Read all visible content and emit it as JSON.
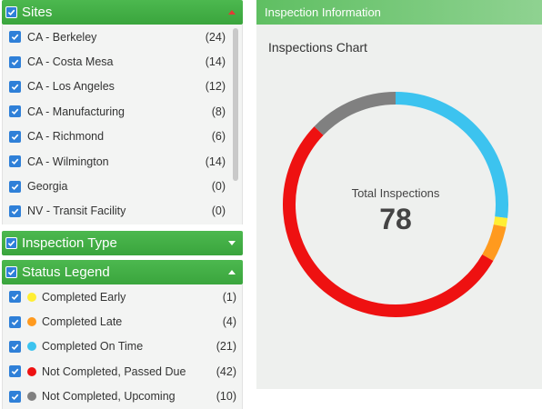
{
  "sites": {
    "title": "Sites",
    "items": [
      {
        "label": "CA - Berkeley",
        "count": "(24)"
      },
      {
        "label": "CA - Costa Mesa",
        "count": "(14)"
      },
      {
        "label": "CA - Los Angeles",
        "count": "(12)"
      },
      {
        "label": "CA - Manufacturing",
        "count": "(8)"
      },
      {
        "label": "CA - Richmond",
        "count": "(6)"
      },
      {
        "label": "CA - Wilmington",
        "count": "(14)"
      },
      {
        "label": "Georgia",
        "count": "(0)"
      },
      {
        "label": "NV - Transit Facility",
        "count": "(0)"
      }
    ]
  },
  "inspection_type": {
    "title": "Inspection Type"
  },
  "status_legend": {
    "title": "Status Legend",
    "items": [
      {
        "label": "Completed Early",
        "count": "(1)",
        "color": "#ffee33"
      },
      {
        "label": "Completed Late",
        "count": "(4)",
        "color": "#ff9a1e"
      },
      {
        "label": "Completed On Time",
        "count": "(21)",
        "color": "#3cc3ef"
      },
      {
        "label": "Not Completed, Passed Due",
        "count": "(42)",
        "color": "#ee1111"
      },
      {
        "label": "Not Completed, Upcoming",
        "count": "(10)",
        "color": "#808080"
      }
    ]
  },
  "inspection_info": {
    "header": "Inspection Information",
    "chart_title": "Inspections Chart",
    "total_label": "Total Inspections",
    "total_value": "78"
  },
  "chart_data": {
    "type": "pie",
    "title": "Inspections Chart",
    "categories": [
      "Completed On Time",
      "Completed Early",
      "Completed Late",
      "Not Completed, Passed Due",
      "Not Completed, Upcoming"
    ],
    "values": [
      21,
      1,
      4,
      42,
      10
    ],
    "colors": [
      "#3cc3ef",
      "#ffee33",
      "#ff9a1e",
      "#ee1111",
      "#808080"
    ],
    "center_label": "Total Inspections",
    "center_value": 78
  }
}
